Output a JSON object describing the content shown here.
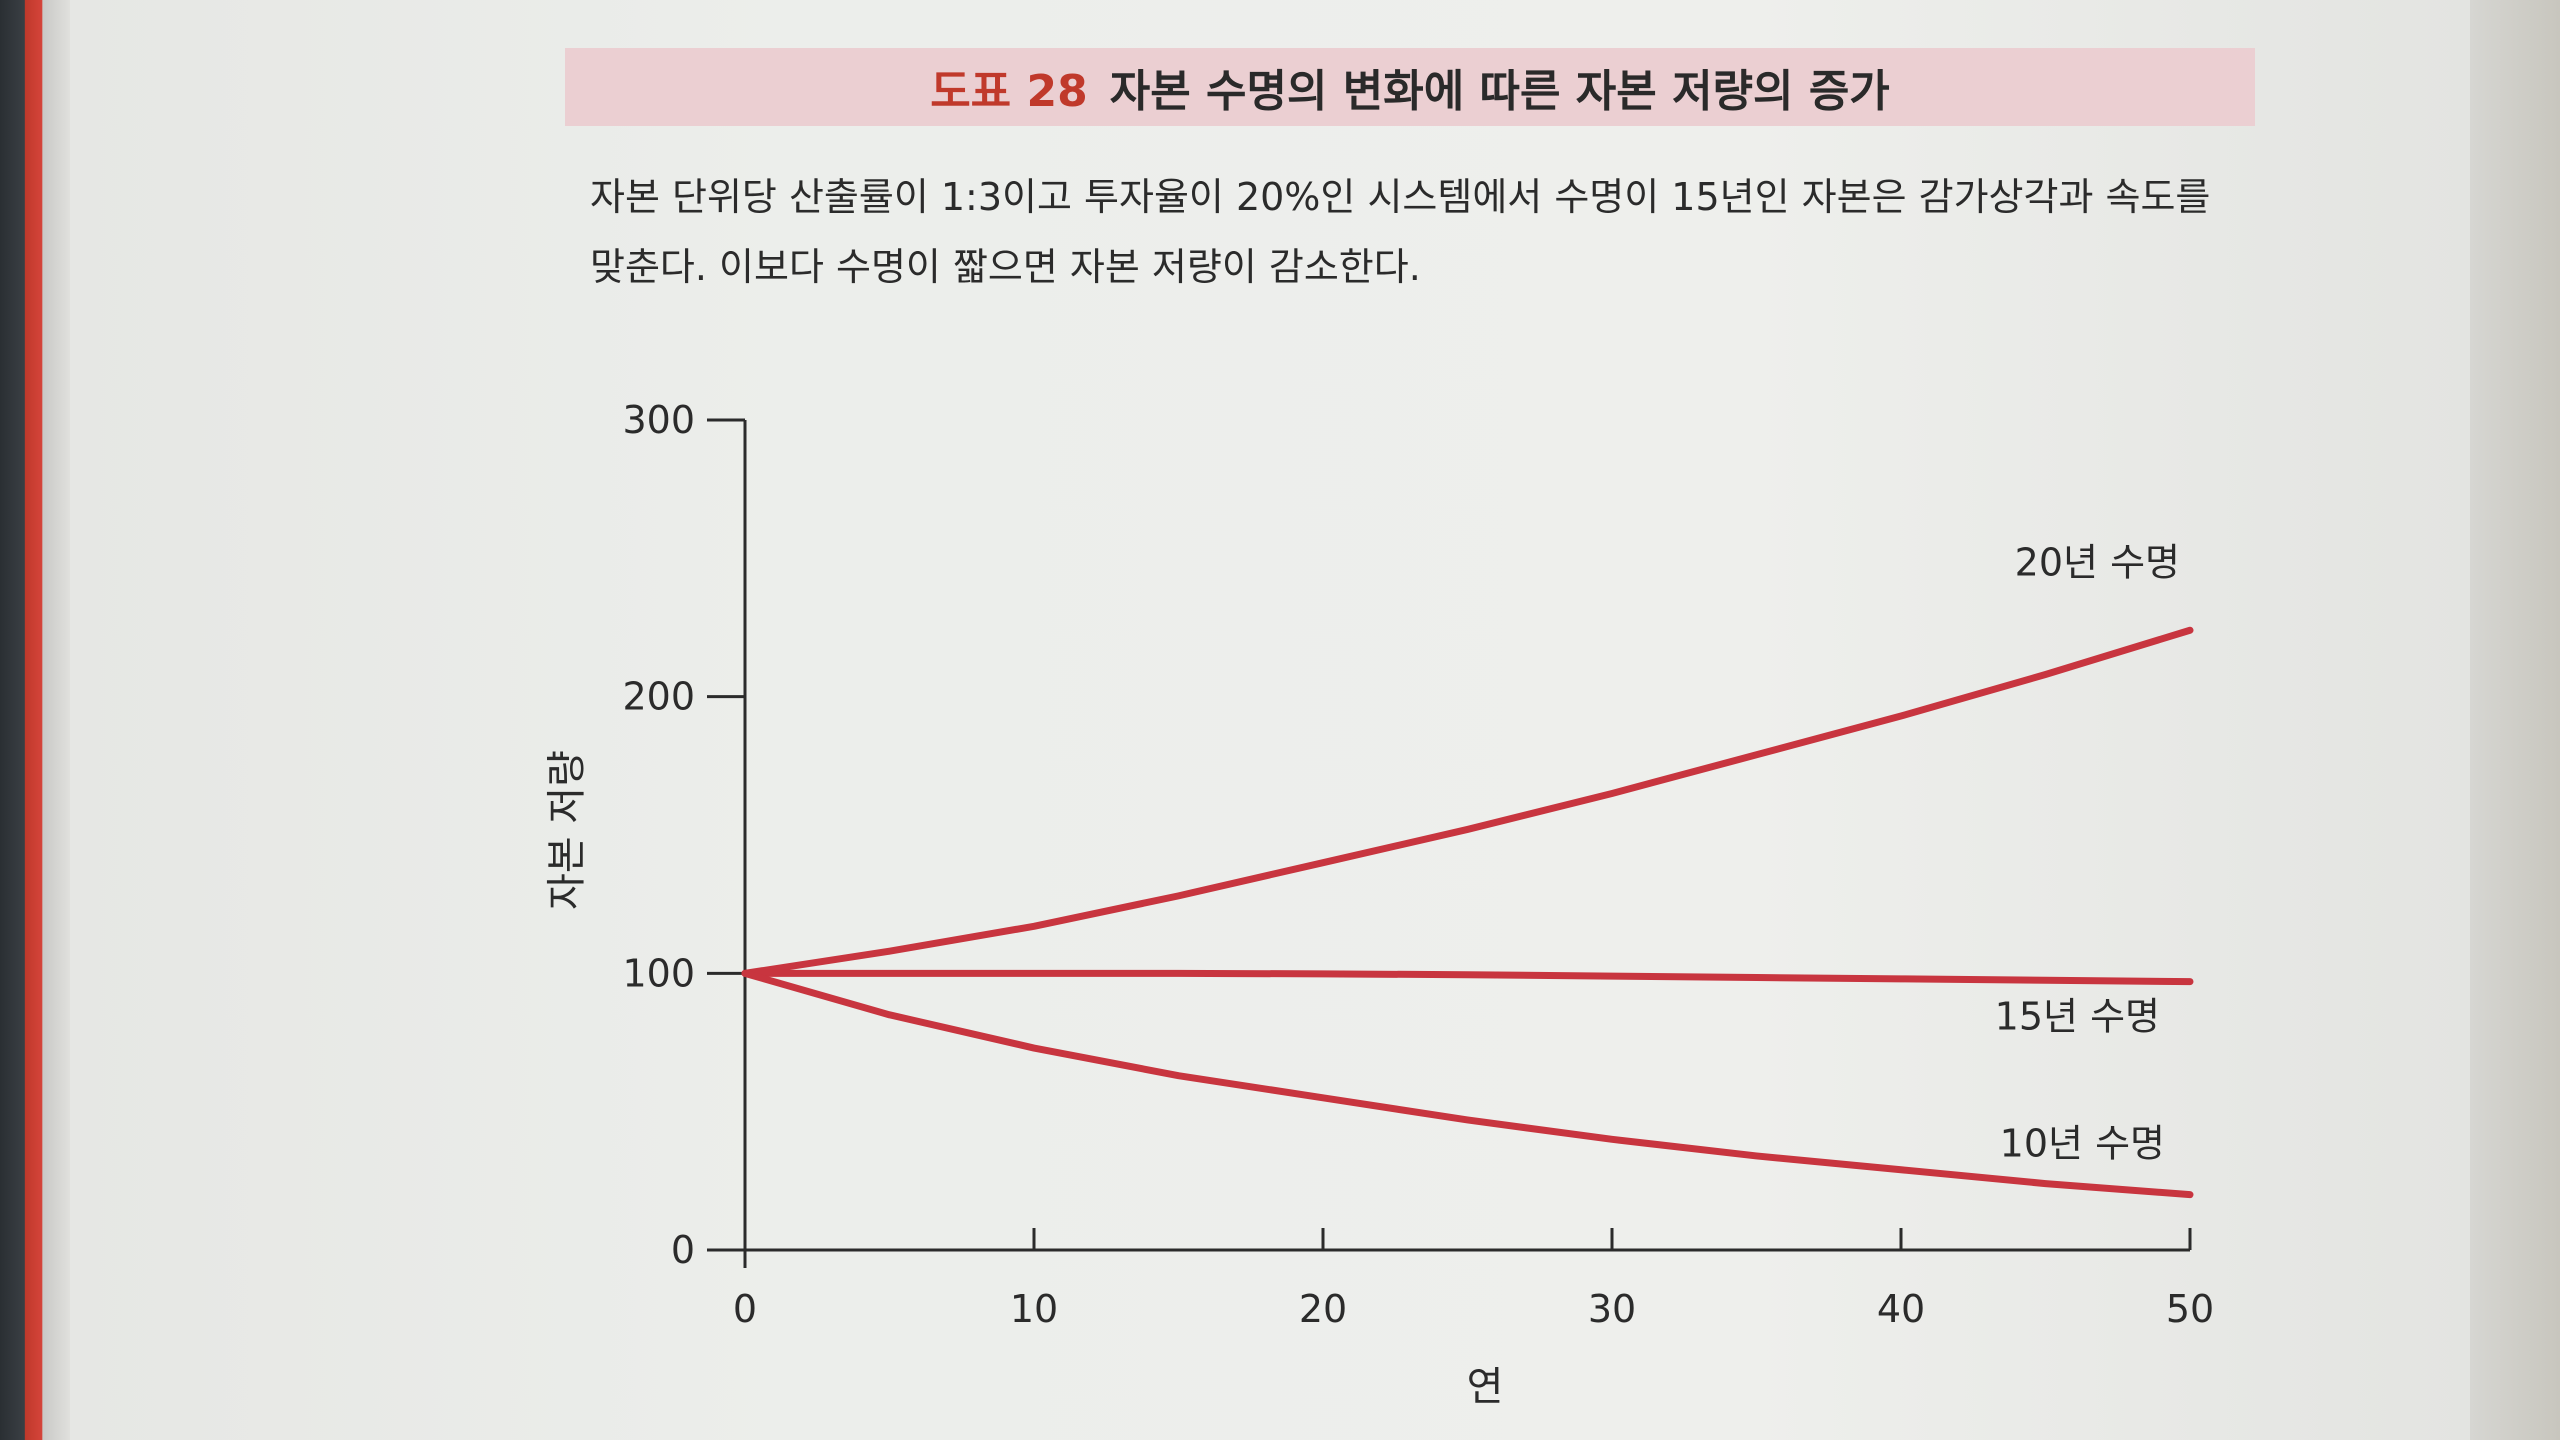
{
  "figure": {
    "number": "도표 28",
    "title": "자본 수명의 변화에 따른 자본 저량의 증가"
  },
  "caption": {
    "line1": "자본 단위당 산출률이 1:3이고 투자율이 20%인 시스템에서 수명이 15년인 자본은 감가상각과 속도를",
    "line2": "맞춘다. 이보다 수명이 짧으면 자본 저량이 감소한다."
  },
  "colors": {
    "accent": "#c0392b",
    "title_band": "#ebcfd2",
    "line": "#c8353f"
  },
  "chart_data": {
    "type": "line",
    "xlabel": "연",
    "ylabel": "자본 저량",
    "xlim": [
      0,
      50
    ],
    "ylim": [
      0,
      300
    ],
    "x_ticks": [
      0,
      10,
      20,
      30,
      40,
      50
    ],
    "y_ticks": [
      0,
      100,
      200,
      300
    ],
    "grid": false,
    "series": [
      {
        "name": "20년 수명",
        "x": [
          0,
          5,
          10,
          15,
          20,
          25,
          30,
          35,
          40,
          45,
          50
        ],
        "values": [
          100,
          108,
          117,
          128,
          140,
          152,
          165,
          179,
          193,
          208,
          224
        ]
      },
      {
        "name": "15년 수명",
        "x": [
          0,
          5,
          10,
          15,
          20,
          25,
          30,
          35,
          40,
          45,
          50
        ],
        "values": [
          100,
          100,
          100,
          100,
          99.8,
          99.5,
          99,
          98.5,
          98,
          97.5,
          97
        ]
      },
      {
        "name": "10년 수명",
        "x": [
          0,
          5,
          10,
          15,
          20,
          25,
          30,
          35,
          40,
          45,
          50
        ],
        "values": [
          100,
          85,
          73,
          63,
          55,
          47,
          40,
          34,
          29,
          24,
          20
        ]
      }
    ]
  }
}
